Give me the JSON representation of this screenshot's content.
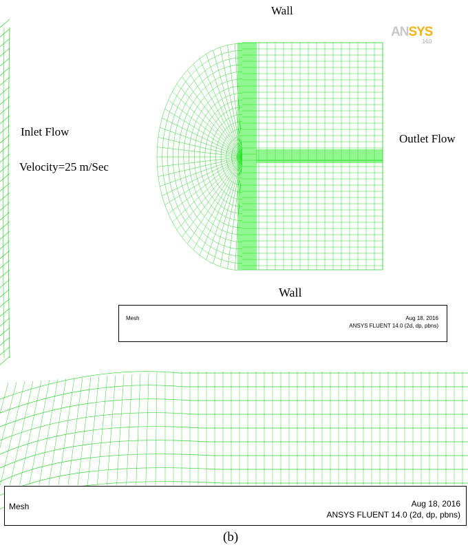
{
  "labels": {
    "wall_top": "Wall",
    "wall_bottom": "Wall",
    "inlet_flow": "Inlet Flow",
    "inlet_velocity": "Velocity=25 m/Sec",
    "outlet_flow": "Outlet Flow",
    "caption": "(b)"
  },
  "logo": {
    "brand_prefix": "AN",
    "brand_suffix": "SYS",
    "version": "14.0"
  },
  "inner_legend": {
    "title": "Mesh",
    "date": "Aug 18, 2016",
    "solver": "ANSYS FLUENT 14.0 (2d, dp, pbns)"
  },
  "outer_legend": {
    "title": "Mesh",
    "date": "Aug 18, 2016",
    "solver": "ANSYS FLUENT 14.0 (2d, dp, pbns)"
  },
  "colors": {
    "mesh_line": "#2fd12f",
    "mesh_dense": "#22ee22",
    "background": "#ffffff"
  }
}
